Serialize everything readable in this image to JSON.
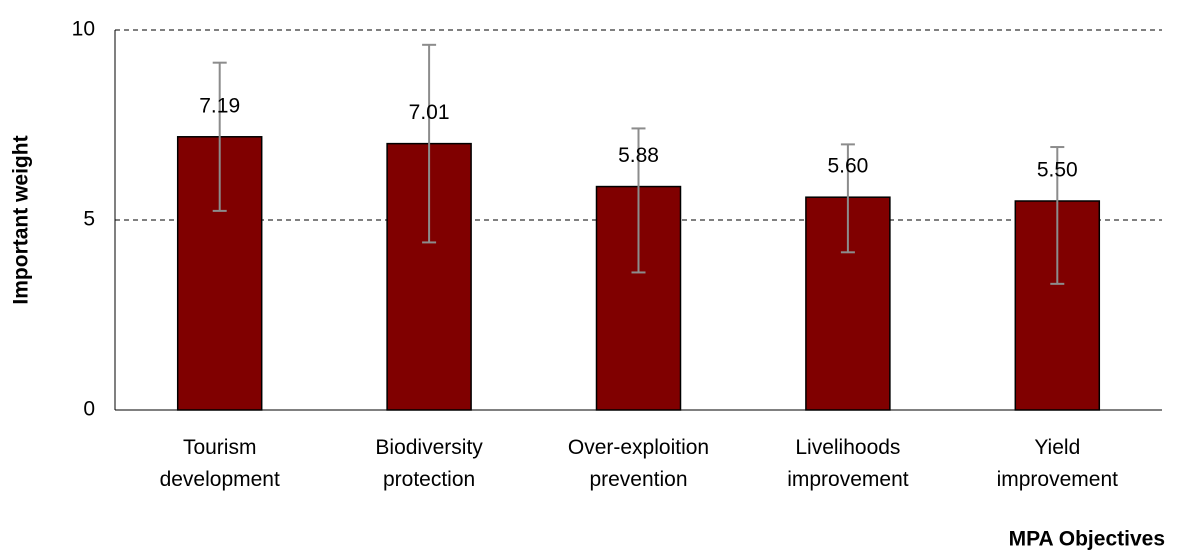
{
  "chart_data": {
    "type": "bar",
    "categories": [
      "Tourism development",
      "Biodiversity protection",
      "Over-exploition prevention",
      "Livelihoods improvement",
      "Yield improvement"
    ],
    "values": [
      7.19,
      7.01,
      5.88,
      5.6,
      5.5
    ],
    "value_labels": [
      "7.19",
      "7.01",
      "5.88",
      "5.60",
      "5.50"
    ],
    "error_minus": [
      1.95,
      2.6,
      2.26,
      1.45,
      2.18
    ],
    "error_plus": [
      1.95,
      2.6,
      1.53,
      1.39,
      1.42
    ],
    "color": "#800000",
    "ylim": [
      0,
      10
    ],
    "yticks": [
      0,
      5,
      10
    ],
    "grid": true,
    "y_label": "Important weight",
    "x_label": "MPA Objectives"
  }
}
